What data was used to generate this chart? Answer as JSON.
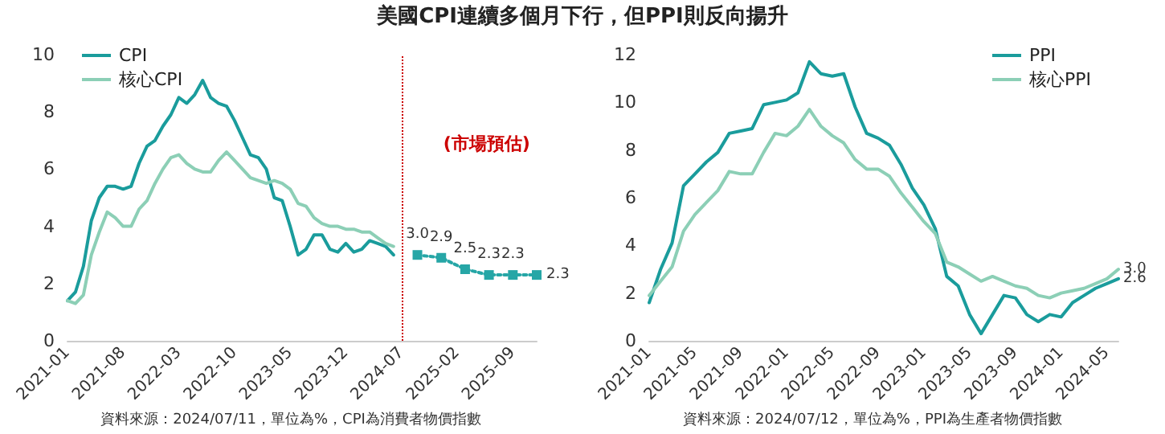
{
  "chart_data": [
    {
      "type": "line",
      "title": "美國CPI連續多個月下行，但PPI則反向揚升",
      "categories": [
        "2021-01",
        null,
        null,
        null,
        null,
        null,
        null,
        "2021-08",
        null,
        null,
        null,
        null,
        null,
        null,
        "2022-03",
        null,
        null,
        null,
        null,
        null,
        null,
        "2022-10",
        null,
        null,
        null,
        null,
        null,
        null,
        "2023-05",
        null,
        null,
        null,
        null,
        null,
        null,
        "2023-12",
        null,
        null,
        null,
        null,
        null,
        null,
        "2024-07",
        null,
        null,
        null,
        null,
        null,
        null,
        "2025-02",
        null,
        null,
        null,
        null,
        null,
        null,
        "2025-09",
        null,
        null,
        null
      ],
      "series": [
        {
          "name": "CPI",
          "color": "#1a9c9c",
          "values": [
            1.4,
            1.7,
            2.6,
            4.2,
            5.0,
            5.4,
            5.4,
            5.3,
            5.4,
            6.2,
            6.8,
            7.0,
            7.5,
            7.9,
            8.5,
            8.3,
            8.6,
            9.1,
            8.5,
            8.3,
            8.2,
            7.7,
            7.1,
            6.5,
            6.4,
            6.0,
            5.0,
            4.9,
            4.0,
            3.0,
            3.2,
            3.7,
            3.7,
            3.2,
            3.1,
            3.4,
            3.1,
            3.2,
            3.5,
            3.4,
            3.3,
            3.0,
            null,
            null,
            null,
            null,
            null,
            null,
            null,
            null,
            null,
            null,
            null,
            null,
            null,
            null,
            null,
            null,
            null,
            null
          ]
        },
        {
          "name": "核心CPI",
          "color": "#8ccfb6",
          "values": [
            1.4,
            1.3,
            1.6,
            3.0,
            3.8,
            4.5,
            4.3,
            4.0,
            4.0,
            4.6,
            4.9,
            5.5,
            6.0,
            6.4,
            6.5,
            6.2,
            6.0,
            5.9,
            5.9,
            6.3,
            6.6,
            6.3,
            6.0,
            5.7,
            5.6,
            5.5,
            5.6,
            5.5,
            5.3,
            4.8,
            4.7,
            4.3,
            4.1,
            4.0,
            4.0,
            3.9,
            3.9,
            3.8,
            3.8,
            3.6,
            3.4,
            3.3,
            null,
            null,
            null,
            null,
            null,
            null,
            null,
            null,
            null,
            null,
            null,
            null,
            null,
            null,
            null,
            null,
            null,
            null
          ]
        },
        {
          "color": "#26a6a6",
          "marker": "square",
          "line_style": "dotted",
          "values": [
            null,
            null,
            null,
            null,
            null,
            null,
            null,
            null,
            null,
            null,
            null,
            null,
            null,
            null,
            null,
            null,
            null,
            null,
            null,
            null,
            null,
            null,
            null,
            null,
            null,
            null,
            null,
            null,
            null,
            null,
            null,
            null,
            null,
            null,
            null,
            null,
            null,
            null,
            null,
            null,
            null,
            null,
            null,
            null,
            3.0,
            null,
            null,
            2.9,
            null,
            null,
            2.5,
            null,
            null,
            2.3,
            null,
            null,
            2.3,
            null,
            null,
            2.3
          ],
          "value_labels": [
            null,
            null,
            null,
            null,
            null,
            null,
            null,
            null,
            null,
            null,
            null,
            null,
            null,
            null,
            null,
            null,
            null,
            null,
            null,
            null,
            null,
            null,
            null,
            null,
            null,
            null,
            null,
            null,
            null,
            null,
            null,
            null,
            null,
            null,
            null,
            null,
            null,
            null,
            null,
            null,
            null,
            null,
            null,
            null,
            "3.0",
            null,
            null,
            "2.9",
            null,
            null,
            "2.5",
            null,
            null,
            "2.3",
            null,
            null,
            "2.3",
            null,
            null,
            "2.3"
          ]
        }
      ],
      "ylim": [
        0,
        10
      ],
      "yticks": [
        0,
        2,
        4,
        6,
        8,
        10
      ],
      "grid": false,
      "legend": "top left",
      "marker": "none",
      "line_style": "solid",
      "ref_lines": [
        {
          "axis": "x",
          "value": "2024-07",
          "label": "(市場預估)",
          "color": "#cc0000",
          "line_style": "dotted"
        }
      ],
      "annotations": [
        "資料來源：2024/07/11，單位為%，CPI為消費者物價指數"
      ]
    },
    {
      "type": "line",
      "categories": [
        "2021-01",
        null,
        null,
        null,
        "2021-05",
        null,
        null,
        null,
        "2021-09",
        null,
        null,
        null,
        "2022-01",
        null,
        null,
        null,
        "2022-05",
        null,
        null,
        null,
        "2022-09",
        null,
        null,
        null,
        "2023-01",
        null,
        null,
        null,
        "2023-05",
        null,
        null,
        null,
        "2023-09",
        null,
        null,
        null,
        "2024-01",
        null,
        null,
        null,
        "2024-05",
        null
      ],
      "series": [
        {
          "name": "PPI",
          "color": "#1a9c9c",
          "values": [
            1.6,
            3.0,
            4.1,
            6.5,
            7.0,
            7.5,
            7.9,
            8.7,
            8.8,
            8.9,
            9.9,
            10.0,
            10.1,
            10.4,
            11.7,
            11.2,
            11.1,
            11.2,
            9.8,
            8.7,
            8.5,
            8.2,
            7.4,
            6.4,
            5.7,
            4.7,
            2.7,
            2.3,
            1.1,
            0.3,
            1.1,
            1.9,
            1.8,
            1.1,
            0.8,
            1.1,
            1.0,
            1.6,
            1.9,
            2.2,
            2.4,
            2.6
          ],
          "value_labels": [
            null,
            null,
            null,
            null,
            null,
            null,
            null,
            null,
            null,
            null,
            null,
            null,
            null,
            null,
            null,
            null,
            null,
            null,
            null,
            null,
            null,
            null,
            null,
            null,
            null,
            null,
            null,
            null,
            null,
            null,
            null,
            null,
            null,
            null,
            null,
            null,
            null,
            null,
            null,
            null,
            null,
            "2.6"
          ]
        },
        {
          "name": "核心PPI",
          "color": "#8ccfb6",
          "values": [
            1.9,
            2.5,
            3.1,
            4.6,
            5.3,
            5.8,
            6.3,
            7.1,
            7.0,
            7.0,
            7.9,
            8.7,
            8.6,
            9.0,
            9.7,
            9.0,
            8.6,
            8.3,
            7.6,
            7.2,
            7.2,
            6.9,
            6.2,
            5.6,
            5.0,
            4.5,
            3.3,
            3.1,
            2.8,
            2.5,
            2.7,
            2.5,
            2.3,
            2.2,
            1.9,
            1.8,
            2.0,
            2.1,
            2.2,
            2.4,
            2.6,
            3.0
          ],
          "value_labels": [
            null,
            null,
            null,
            null,
            null,
            null,
            null,
            null,
            null,
            null,
            null,
            null,
            null,
            null,
            null,
            null,
            null,
            null,
            null,
            null,
            null,
            null,
            null,
            null,
            null,
            null,
            null,
            null,
            null,
            null,
            null,
            null,
            null,
            null,
            null,
            null,
            null,
            null,
            null,
            null,
            null,
            "3.0"
          ]
        }
      ],
      "ylim": [
        0,
        12
      ],
      "yticks": [
        0,
        2,
        4,
        6,
        8,
        10,
        12
      ],
      "grid": false,
      "legend": "top right",
      "marker": "none",
      "line_style": "solid",
      "annotations": [
        "資料來源：2024/07/12，單位為%，PPI為生產者物價指數"
      ]
    }
  ]
}
